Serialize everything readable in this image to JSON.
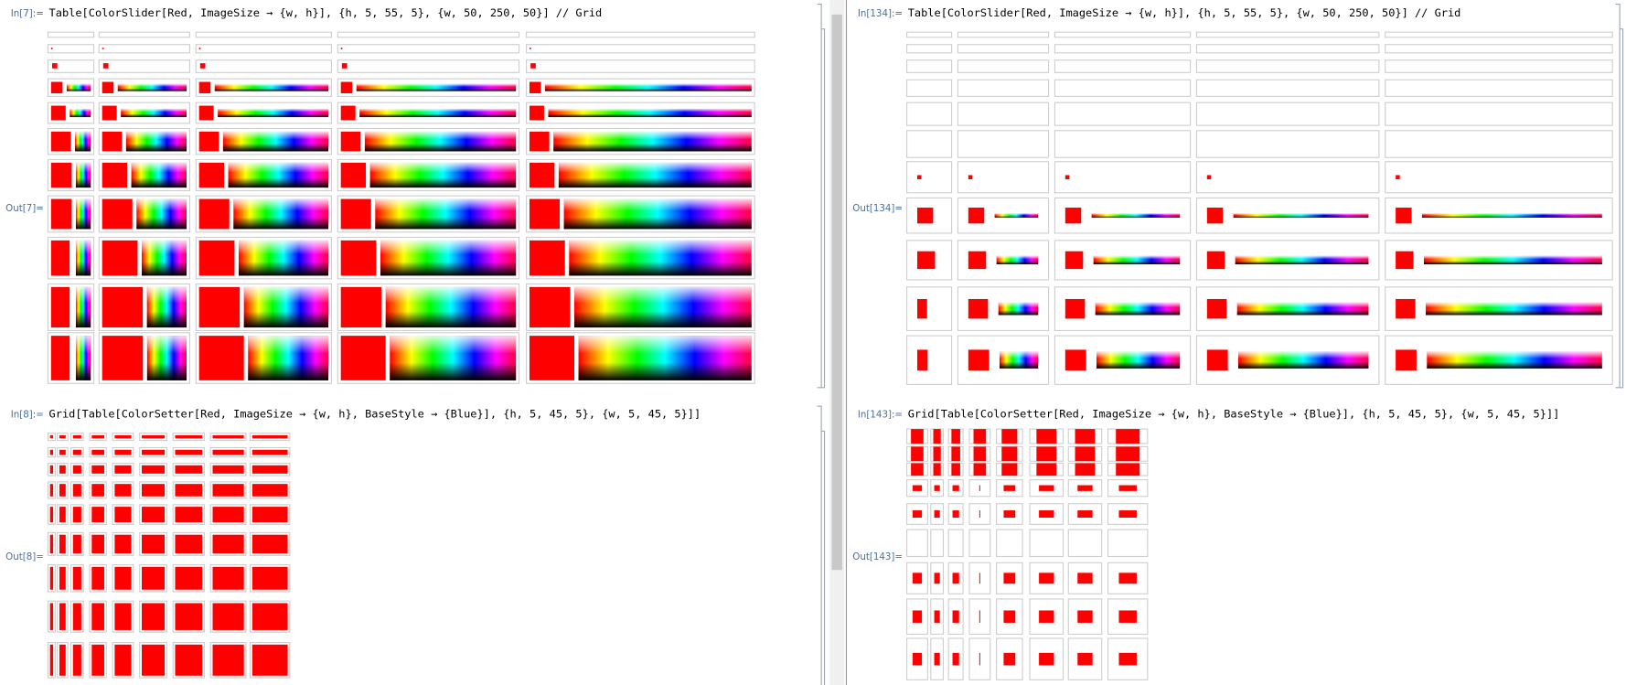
{
  "panels": [
    {
      "cells": [
        {
          "in_label": "In[7]:=",
          "code": "Table[ColorSlider[Red, ImageSize → {w, h}], {h, 5, 55, 5}, {w, 50, 250, 50}] // Grid",
          "out_label": "Out[7]="
        },
        {
          "in_label": "In[8]:=",
          "code": "Grid[Table[ColorSetter[Red, ImageSize → {w, h}, BaseStyle → {Blue}], {h, 5, 45, 5}, {w, 5, 45, 5}]]",
          "out_label": "Out[8]="
        }
      ]
    },
    {
      "cells": [
        {
          "in_label": "In[134]:=",
          "code": "Table[ColorSlider[Red, ImageSize → {w, h}], {h, 5, 55, 5}, {w, 50, 250, 50}] // Grid",
          "out_label": "Out[134]="
        },
        {
          "in_label": "In[143]:=",
          "code": "Grid[Table[ColorSetter[Red, ImageSize → {w, h}, BaseStyle → {Blue}], {h, 5, 45, 5}, {w, 5, 45, 5}]]",
          "out_label": "Out[143]="
        }
      ]
    }
  ]
}
